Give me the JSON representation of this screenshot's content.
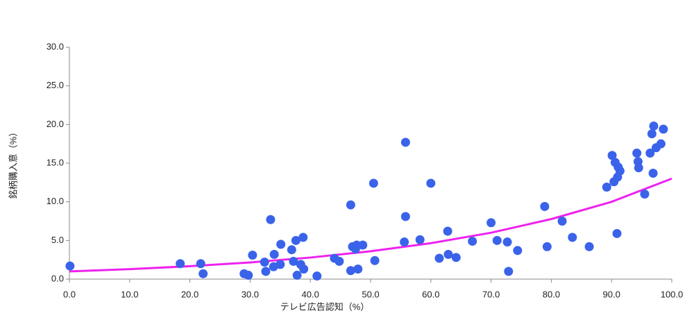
{
  "chart_data": {
    "type": "scatter",
    "x_label": "テレビ広告認知（%）",
    "y_label": "銘柄購入意（%）",
    "xlim": [
      0,
      100
    ],
    "ylim": [
      0,
      30
    ],
    "xticks": [
      {
        "value": 0,
        "label": "0.0"
      },
      {
        "value": 10,
        "label": "10.0"
      },
      {
        "value": 20,
        "label": "20.0"
      },
      {
        "value": 30,
        "label": "30.0"
      },
      {
        "value": 40,
        "label": "40.0"
      },
      {
        "value": 50,
        "label": "50.0"
      },
      {
        "value": 60,
        "label": "60.0"
      },
      {
        "value": 70,
        "label": "70.0"
      },
      {
        "value": 80,
        "label": "80.0"
      },
      {
        "value": 90,
        "label": "90.0"
      },
      {
        "value": 100,
        "label": "100.0"
      }
    ],
    "yticks": [
      {
        "value": 0,
        "label": "0.0"
      },
      {
        "value": 5,
        "label": "5.0"
      },
      {
        "value": 10,
        "label": "10.0"
      },
      {
        "value": 15,
        "label": "15.0"
      },
      {
        "value": 20,
        "label": "20.0"
      },
      {
        "value": 25,
        "label": "25.0"
      },
      {
        "value": 30,
        "label": "30.0"
      }
    ],
    "color": "#3a63ea",
    "x": [
      0.1,
      18.4,
      21.8,
      22.2,
      29.0,
      29.7,
      30.4,
      32.4,
      32.6,
      33.4,
      33.9,
      34.0,
      35.0,
      35.1,
      36.9,
      37.2,
      37.6,
      37.8,
      38.4,
      38.8,
      38.9,
      41.1,
      44.0,
      44.8,
      46.7,
      46.7,
      47.0,
      47.5,
      47.7,
      47.9,
      48.7,
      50.5,
      50.7,
      55.8,
      55.6,
      55.8,
      58.2,
      60.0,
      61.4,
      62.8,
      62.9,
      64.2,
      66.9,
      70.0,
      71.0,
      72.7,
      72.9,
      74.4,
      78.9,
      79.3,
      81.8,
      83.5,
      86.3,
      89.2,
      90.1,
      90.4,
      90.6,
      90.9,
      91.0,
      91.1,
      91.4,
      94.2,
      94.4,
      94.5,
      95.5,
      96.4,
      96.7,
      96.9,
      97.0,
      97.4,
      98.2,
      98.6
    ],
    "values": [
      1.7,
      2.0,
      2.0,
      0.7,
      0.7,
      0.5,
      3.1,
      2.2,
      1.0,
      7.7,
      1.6,
      3.2,
      1.9,
      4.5,
      3.8,
      2.3,
      5.0,
      0.5,
      1.9,
      5.4,
      1.3,
      0.4,
      2.7,
      2.3,
      9.6,
      1.1,
      4.2,
      3.9,
      4.4,
      1.3,
      4.4,
      12.4,
      2.4,
      17.7,
      4.8,
      8.1,
      5.1,
      12.4,
      2.7,
      6.2,
      3.2,
      2.8,
      4.9,
      7.3,
      5.0,
      4.8,
      1.0,
      3.7,
      9.4,
      4.2,
      7.5,
      5.4,
      4.2,
      11.9,
      16.0,
      12.6,
      15.1,
      5.9,
      13.2,
      14.5,
      14.0,
      16.3,
      15.2,
      14.4,
      11.0,
      16.3,
      18.8,
      13.7,
      19.8,
      17.0,
      17.5,
      19.4
    ],
    "trendline": {
      "color": "#ee22ee",
      "x": [
        0,
        10,
        20,
        30,
        40,
        50,
        60,
        70,
        80,
        90,
        100
      ],
      "values": [
        1.0,
        1.29,
        1.67,
        2.16,
        2.79,
        3.6,
        4.65,
        6.0,
        7.77,
        10.0,
        13.0
      ]
    }
  }
}
